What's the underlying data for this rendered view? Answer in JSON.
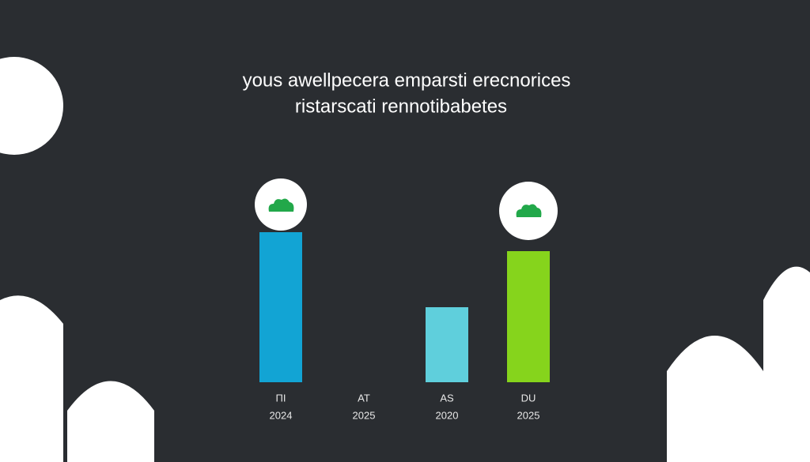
{
  "chart_data": {
    "type": "bar",
    "title": "yous awellpecera emparsti erecnorices",
    "subtitle": "ristarscati rennotibabetes",
    "categories": [
      "ΠI",
      "AT",
      "AS",
      "DU"
    ],
    "years": [
      "2024",
      "2025",
      "2020",
      "2025"
    ],
    "values": [
      190,
      null,
      95,
      166
    ],
    "colors": [
      "#12a4d4",
      "#3fb8c8",
      "#5fcfdc",
      "#86d41c"
    ],
    "ylim": [
      0,
      200
    ]
  }
}
